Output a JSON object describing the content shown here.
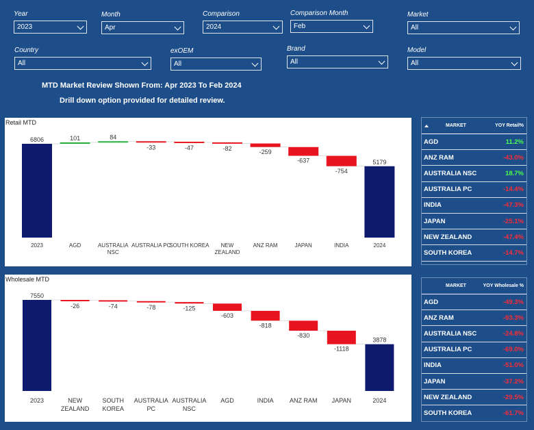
{
  "filters": [
    {
      "label": "Year",
      "value": "2023"
    },
    {
      "label": "Month",
      "value": "Apr"
    },
    {
      "label": "Comparison",
      "value": "2024"
    },
    {
      "label": "Comparison Month",
      "value": "Feb"
    },
    {
      "label": "Market",
      "value": "All"
    },
    {
      "label": "Country",
      "value": "All"
    },
    {
      "label": "exOEM",
      "value": "All"
    },
    {
      "label": "Brand",
      "value": "All"
    },
    {
      "label": "Model",
      "value": "All"
    }
  ],
  "headline": {
    "line1": "MTD Market Review Shown From: Apr 2023 To Feb 2024",
    "line2": "Drill down option provided for detailed review."
  },
  "colors": {
    "background": "#1d4e89",
    "total": "#0d1a6e",
    "increase": "#22b03a",
    "decrease": "#e8141f",
    "positive_text": "#4dff4d",
    "negative_text": "#ff2a35"
  },
  "chart_data": [
    {
      "type": "bar",
      "subtype": "waterfall",
      "title": "Retail MTD",
      "categories": [
        "2023",
        "AGD",
        "AUSTRALIA NSC",
        "AUSTRALIA PC",
        "SOUTH KOREA",
        "NEW ZEALAND",
        "ANZ RAM",
        "JAPAN",
        "INDIA",
        "2024"
      ],
      "values": [
        6806,
        101,
        84,
        -33,
        -47,
        -82,
        -259,
        -637,
        -754,
        5179
      ],
      "labels": [
        "6806",
        "101",
        "84",
        "-33",
        "-47",
        "-82",
        "-259",
        "-637",
        "-754",
        "5179"
      ],
      "kinds": [
        "total",
        "delta",
        "delta",
        "delta",
        "delta",
        "delta",
        "delta",
        "delta",
        "delta",
        "total"
      ]
    },
    {
      "type": "bar",
      "subtype": "waterfall",
      "title": "Wholesale MTD",
      "categories": [
        "2023",
        "NEW ZEALAND",
        "SOUTH KOREA",
        "AUSTRALIA PC",
        "AUSTRALIA NSC",
        "AGD",
        "INDIA",
        "ANZ RAM",
        "JAPAN",
        "2024"
      ],
      "values": [
        7550,
        -26,
        -74,
        -78,
        -125,
        -603,
        -818,
        -830,
        -1118,
        3878
      ],
      "labels": [
        "7550",
        "-26",
        "-74",
        "-78",
        "-125",
        "-603",
        "-818",
        "-830",
        "-1118",
        "3878"
      ],
      "kinds": [
        "total",
        "delta",
        "delta",
        "delta",
        "delta",
        "delta",
        "delta",
        "delta",
        "delta",
        "total"
      ]
    }
  ],
  "retail_table": {
    "col_market": "MARKET",
    "col_value": "YOY Retail%",
    "rows": [
      {
        "market": "AGD",
        "value": "11.2%",
        "positive": true
      },
      {
        "market": "ANZ RAM",
        "value": "-43.0%",
        "positive": false
      },
      {
        "market": "AUSTRALIA NSC",
        "value": "18.7%",
        "positive": true
      },
      {
        "market": "AUSTRALIA PC",
        "value": "-14.4%",
        "positive": false
      },
      {
        "market": "INDIA",
        "value": "-47.3%",
        "positive": false
      },
      {
        "market": "JAPAN",
        "value": "-25.1%",
        "positive": false
      },
      {
        "market": "NEW ZEALAND",
        "value": "-47.4%",
        "positive": false
      },
      {
        "market": "SOUTH KOREA",
        "value": "-14.7%",
        "positive": false
      }
    ]
  },
  "wholesale_table": {
    "col_market": "MARKET",
    "col_value": "YOY Wholesale %",
    "rows": [
      {
        "market": "AGD",
        "value": "-49.3%",
        "positive": false
      },
      {
        "market": "ANZ RAM",
        "value": "-93.3%",
        "positive": false
      },
      {
        "market": "AUSTRALIA NSC",
        "value": "-24.8%",
        "positive": false
      },
      {
        "market": "AUSTRALIA PC",
        "value": "-69.0%",
        "positive": false
      },
      {
        "market": "INDIA",
        "value": "-51.0%",
        "positive": false
      },
      {
        "market": "JAPAN",
        "value": "-37.2%",
        "positive": false
      },
      {
        "market": "NEW ZEALAND",
        "value": "-29.5%",
        "positive": false
      },
      {
        "market": "SOUTH KOREA",
        "value": "-61.7%",
        "positive": false
      }
    ]
  }
}
